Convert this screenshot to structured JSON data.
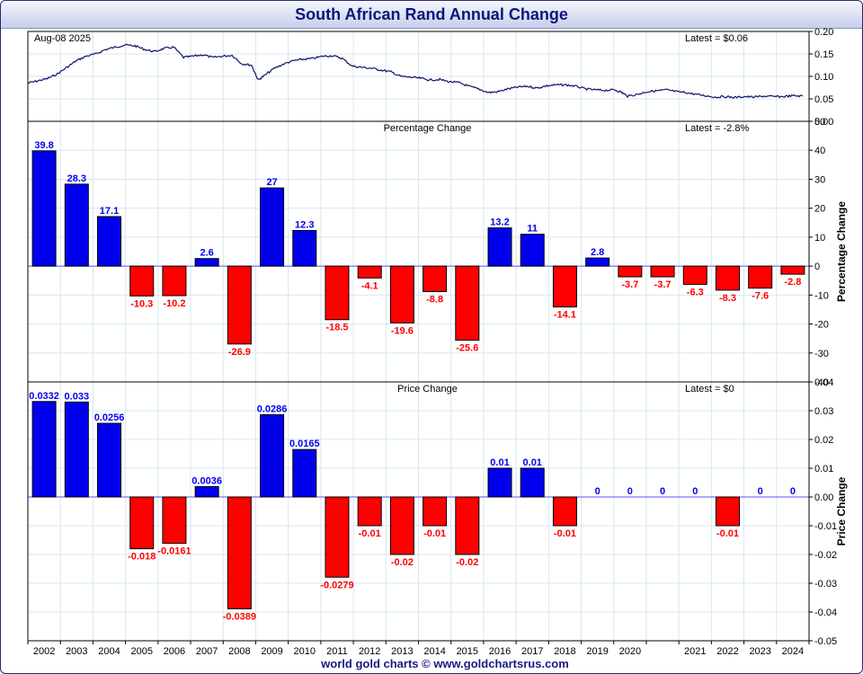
{
  "title": "South African Rand Annual Change",
  "footer": "world gold charts © www.goldchartsrus.com",
  "colors": {
    "positive": "#0000ee",
    "negative": "#ff0000",
    "line": "#10106a",
    "grid": "#d6e8ee",
    "zero_line": "#5555ff"
  },
  "chart_data": [
    {
      "type": "line",
      "name": "price",
      "date_label": "Aug-08  2025",
      "latest_label": "Latest = $0.06",
      "ylim": [
        0,
        0.2
      ],
      "yticks": [
        "0.00",
        "0.05",
        "0.10",
        "0.15",
        "0.20"
      ],
      "x": [
        2001.7,
        2002.0,
        2002.3,
        2002.6,
        2002.9,
        2003.2,
        2003.5,
        2003.8,
        2004.1,
        2004.4,
        2004.7,
        2005.0,
        2005.3,
        2005.6,
        2005.9,
        2006.2,
        2006.5,
        2006.8,
        2007.1,
        2007.4,
        2007.7,
        2008.0,
        2008.3,
        2008.6,
        2008.8,
        2009.0,
        2009.3,
        2009.6,
        2009.9,
        2010.2,
        2010.5,
        2010.8,
        2011.1,
        2011.4,
        2011.7,
        2012.0,
        2012.3,
        2012.6,
        2012.9,
        2013.2,
        2013.5,
        2013.8,
        2014.1,
        2014.4,
        2014.7,
        2015.0,
        2015.3,
        2015.6,
        2015.9,
        2016.2,
        2016.5,
        2016.8,
        2017.1,
        2017.4,
        2017.7,
        2018.0,
        2018.3,
        2018.6,
        2018.9,
        2019.2,
        2019.5,
        2019.8,
        2020.0,
        2020.2,
        2020.5,
        2020.8,
        2021.1,
        2021.4,
        2021.7,
        2022.0,
        2022.3,
        2022.6,
        2022.9,
        2023.2,
        2023.5,
        2023.8,
        2024.1,
        2024.4,
        2024.7,
        2025.0,
        2025.3,
        2025.6
      ],
      "y": [
        0.085,
        0.09,
        0.095,
        0.105,
        0.12,
        0.135,
        0.145,
        0.15,
        0.16,
        0.165,
        0.17,
        0.168,
        0.16,
        0.155,
        0.162,
        0.165,
        0.142,
        0.145,
        0.148,
        0.142,
        0.145,
        0.147,
        0.128,
        0.125,
        0.092,
        0.102,
        0.118,
        0.128,
        0.135,
        0.138,
        0.14,
        0.145,
        0.146,
        0.14,
        0.123,
        0.12,
        0.118,
        0.114,
        0.11,
        0.1,
        0.098,
        0.096,
        0.092,
        0.093,
        0.088,
        0.086,
        0.078,
        0.072,
        0.064,
        0.066,
        0.072,
        0.076,
        0.078,
        0.074,
        0.079,
        0.081,
        0.081,
        0.078,
        0.072,
        0.07,
        0.069,
        0.07,
        0.065,
        0.056,
        0.06,
        0.066,
        0.068,
        0.07,
        0.066,
        0.064,
        0.06,
        0.057,
        0.054,
        0.055,
        0.053,
        0.055,
        0.054,
        0.056,
        0.055,
        0.055,
        0.057,
        0.056
      ]
    },
    {
      "type": "bar",
      "name": "percentage",
      "title": "Percentage Change",
      "latest_label": "Latest = -2.8%",
      "ylabel": "Percentage Change",
      "ylim": [
        -40,
        50
      ],
      "yticks": [
        "-40",
        "-30",
        "-20",
        "-10",
        "0",
        "10",
        "20",
        "30",
        "40",
        "50"
      ],
      "categories": [
        "2002",
        "2003",
        "2004",
        "2005",
        "2006",
        "2007",
        "2008",
        "2009",
        "2010",
        "2011",
        "2012",
        "2013",
        "2014",
        "2015",
        "2016",
        "2017",
        "2018",
        "2019",
        "2020",
        "",
        "2021",
        "2022",
        "2023",
        "2024"
      ],
      "values": [
        39.8,
        28.3,
        17.1,
        -10.3,
        -10.2,
        2.6,
        -26.9,
        27,
        12.3,
        -18.5,
        -4.1,
        -19.6,
        -8.8,
        -25.6,
        13.2,
        11,
        -14.1,
        2.8,
        -3.7,
        -3.7,
        -6.3,
        -8.3,
        -7.6,
        -2.8
      ],
      "labels": [
        "39.8",
        "28.3",
        "17.1",
        "-10.3",
        "-10.2",
        "2.6",
        "-26.9",
        "27",
        "12.3",
        "-18.5",
        "-4.1",
        "-19.6",
        "-8.8",
        "-25.6",
        "13.2",
        "11",
        "-14.1",
        "2.8",
        "-3.7",
        "-3.7",
        "-6.3",
        "-8.3",
        "-7.6",
        "-2.8"
      ]
    },
    {
      "type": "bar",
      "name": "price_change",
      "title": "Price Change",
      "latest_label": "Latest = $0",
      "ylabel": "Price Change",
      "ylim": [
        -0.05,
        0.04
      ],
      "yticks": [
        "-0.05",
        "-0.04",
        "-0.03",
        "-0.02",
        "-0.01",
        "0.00",
        "0.01",
        "0.02",
        "0.03",
        "0.04"
      ],
      "values": [
        0.0332,
        0.033,
        0.0256,
        -0.018,
        -0.0161,
        0.0036,
        -0.0389,
        0.0286,
        0.0165,
        -0.0279,
        -0.01,
        -0.02,
        -0.01,
        -0.02,
        0.01,
        0.01,
        -0.01,
        0,
        0,
        0,
        0,
        -0.01,
        0,
        0
      ],
      "labels": [
        "0.0332",
        "0.033",
        "0.0256",
        "-0.018",
        "-0.0161",
        "0.0036",
        "-0.0389",
        "0.0286",
        "0.0165",
        "-0.0279",
        "-0.01",
        "-0.02",
        "-0.01",
        "-0.02",
        "0.01",
        "0.01",
        "-0.01",
        "0",
        "0",
        "0",
        "0",
        "-0.01",
        "0",
        "0"
      ]
    }
  ]
}
